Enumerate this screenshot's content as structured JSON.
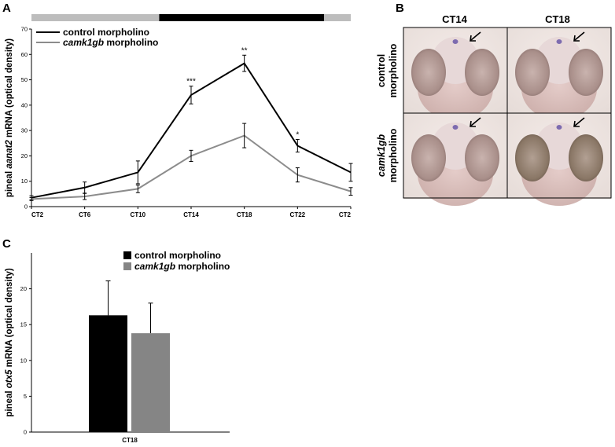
{
  "panel_labels": {
    "a": "A",
    "b": "B",
    "c": "C"
  },
  "chart_data": [
    {
      "type": "line",
      "panel": "A",
      "title": "",
      "xlabel": "",
      "ylabel_parts": [
        "pineal ",
        "aanat2",
        " mRNA (optical density)"
      ],
      "categories": [
        "CT2",
        "CT6",
        "CT10",
        "CT14",
        "CT18",
        "CT22",
        "CT2"
      ],
      "ylim": [
        0,
        70
      ],
      "yticks": [
        "0",
        "10",
        "20",
        "30",
        "40",
        "50",
        "60",
        "70"
      ],
      "light_dark_bar": [
        {
          "phase": "subjective day",
          "from_category": 0,
          "to_category": 2.4,
          "color": "#bdbdbd"
        },
        {
          "phase": "subjective night",
          "from_category": 2.4,
          "to_category": 5.5,
          "color": "#000000"
        },
        {
          "phase": "subjective day",
          "from_category": 5.5,
          "to_category": 6,
          "color": "#bdbdbd"
        }
      ],
      "series": [
        {
          "name_parts": [
            "control morpholino"
          ],
          "italic_index": -1,
          "color": "#000000",
          "values": [
            3.5,
            7.5,
            13.5,
            44,
            56.5,
            24,
            13.5
          ],
          "errors": [
            0.8,
            2.2,
            4.5,
            3.5,
            3.2,
            2.5,
            3.5
          ]
        },
        {
          "name_parts": [
            "camk1gb",
            " morpholino"
          ],
          "italic_index": 0,
          "color": "#8c8c8c",
          "values": [
            3,
            4,
            7,
            20,
            28,
            12.5,
            6
          ],
          "errors": [
            0.6,
            1.2,
            1.5,
            2.2,
            4.8,
            2.8,
            1.5
          ]
        }
      ],
      "significance": [
        {
          "category": 3,
          "label": "***"
        },
        {
          "category": 4,
          "label": "**"
        },
        {
          "category": 5,
          "label": "*"
        }
      ]
    },
    {
      "type": "bar",
      "panel": "C",
      "title": "",
      "xlabel": "",
      "ylabel_parts": [
        "pineal ",
        "otx5",
        " mRNA (optical density)"
      ],
      "categories": [
        "CT18"
      ],
      "ylim": [
        0,
        25
      ],
      "yticks": [
        "0",
        "5",
        "10",
        "15",
        "20"
      ],
      "series": [
        {
          "name_parts": [
            "control morpholino"
          ],
          "italic_index": -1,
          "color": "#000000",
          "values": [
            16.3
          ],
          "errors": [
            4.8
          ]
        },
        {
          "name_parts": [
            "camk1gb",
            " morpholino"
          ],
          "italic_index": 0,
          "color": "#858585",
          "values": [
            13.8
          ],
          "errors": [
            4.2
          ]
        }
      ]
    }
  ],
  "image_grid": {
    "columns": [
      "CT14",
      "CT18"
    ],
    "rows": [
      {
        "line1": "control",
        "line2": "morpholino",
        "italic_line1": false
      },
      {
        "line1": "camk1gb",
        "line2": "morpholino",
        "italic_line1": true
      }
    ]
  }
}
